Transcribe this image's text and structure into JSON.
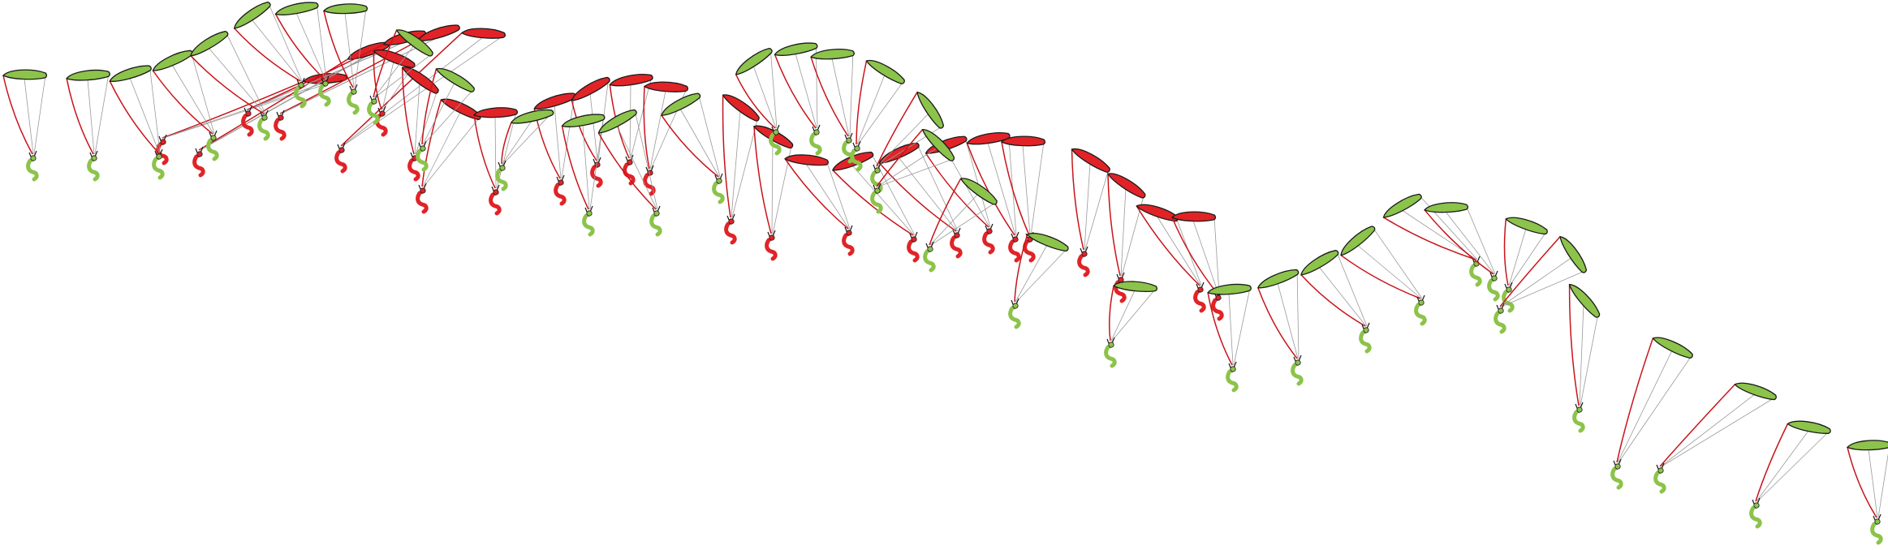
{
  "diagram": {
    "description_visible_text": "",
    "palette": {
      "green_glider": "#8cc34a",
      "red_glider": "#e12327",
      "outline": "#1a1a1a",
      "line_red": "#c8141a",
      "line_grey": "#9a9a9a",
      "background": "#ffffff"
    },
    "sequences": [
      {
        "color": "green",
        "count": 33
      },
      {
        "color": "red",
        "count": 31
      }
    ]
  }
}
